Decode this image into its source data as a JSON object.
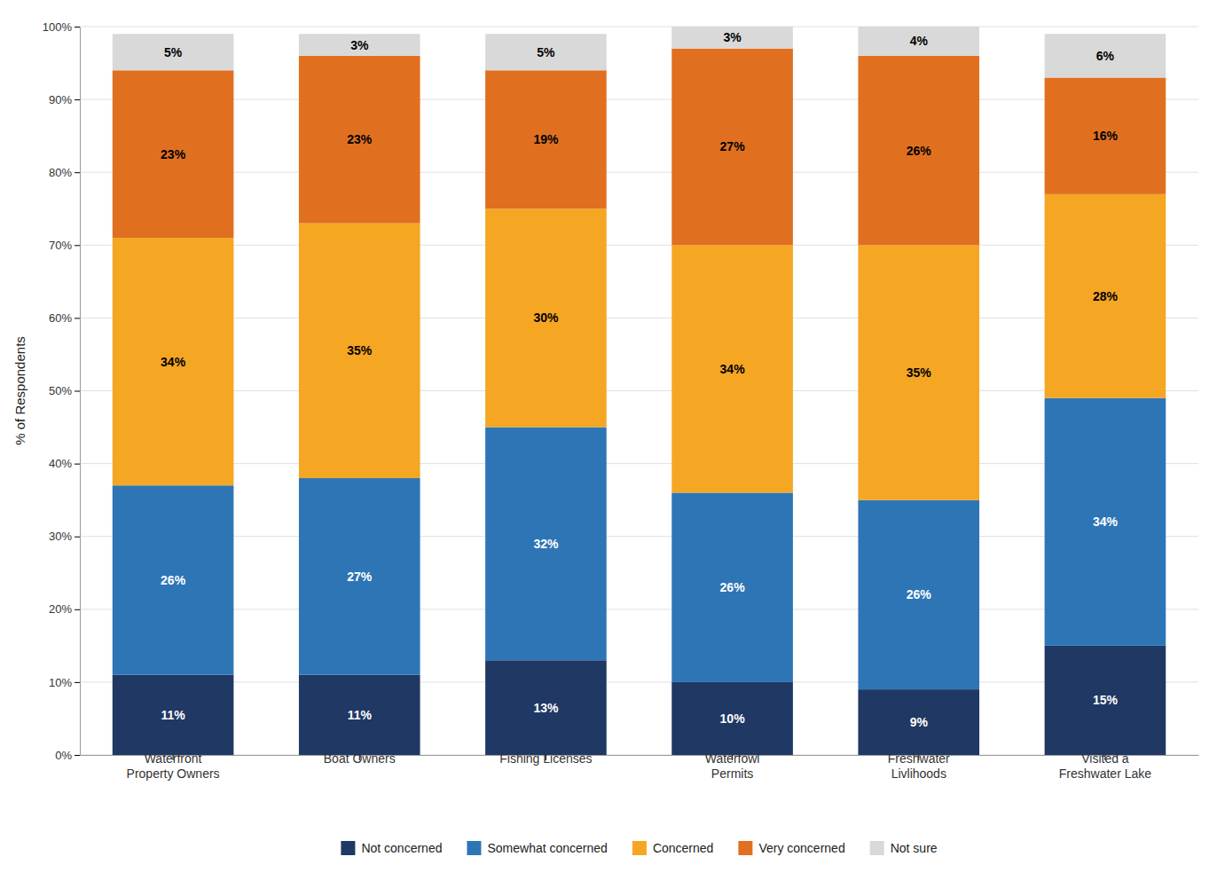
{
  "chart_data": {
    "type": "bar",
    "stacked": true,
    "data_labels": true,
    "grid": true,
    "legend": "bottom",
    "y_label": "% of Respondents",
    "categories": [
      "Waterfront\nProperty Owners",
      "Boat Owners",
      "Fishing Licenses",
      "Waterfowl\nPermits",
      "Freshwater\nLivlihoods",
      "Visited a\nFreshwater Lake"
    ],
    "series": [
      {
        "name": "Not concerned",
        "color": "#1f3864",
        "values": [
          11,
          11,
          13,
          10,
          9,
          15
        ],
        "value_labels": [
          "11%",
          "11%",
          "13%",
          "10%",
          "9%",
          "15%"
        ]
      },
      {
        "name": "Somewhat concerned",
        "color": "#2e75b6",
        "values": [
          26,
          27,
          32,
          26,
          26,
          34
        ],
        "value_labels": [
          "26%",
          "27%",
          "32%",
          "26%",
          "26%",
          "34%"
        ]
      },
      {
        "name": "Concerned",
        "color": "#f5a623",
        "values": [
          34,
          35,
          30,
          34,
          35,
          28
        ],
        "value_labels": [
          "34%",
          "35%",
          "30%",
          "34%",
          "35%",
          "28%"
        ]
      },
      {
        "name": "Very concerned",
        "color": "#e07020",
        "values": [
          23,
          23,
          19,
          27,
          26,
          16
        ],
        "value_labels": [
          "23%",
          "23%",
          "19%",
          "27%",
          "26%",
          "16%"
        ]
      },
      {
        "name": "Not sure",
        "color": "#d9d9d9",
        "values": [
          5,
          3,
          5,
          3,
          4,
          6
        ],
        "value_labels": [
          "5%",
          "3%",
          "5%",
          "3%",
          "4%",
          "6%"
        ]
      }
    ],
    "ylim": [
      0,
      100
    ],
    "yticks": [
      {
        "value": 0,
        "label": "0%"
      },
      {
        "value": 10,
        "label": "10%"
      },
      {
        "value": 20,
        "label": "20%"
      },
      {
        "value": 30,
        "label": "30%"
      },
      {
        "value": 40,
        "label": "40%"
      },
      {
        "value": 50,
        "label": "50%"
      },
      {
        "value": 60,
        "label": "60%"
      },
      {
        "value": 70,
        "label": "70%"
      },
      {
        "value": 80,
        "label": "80%"
      },
      {
        "value": 90,
        "label": "90%"
      },
      {
        "value": 100,
        "label": "100%"
      }
    ]
  }
}
